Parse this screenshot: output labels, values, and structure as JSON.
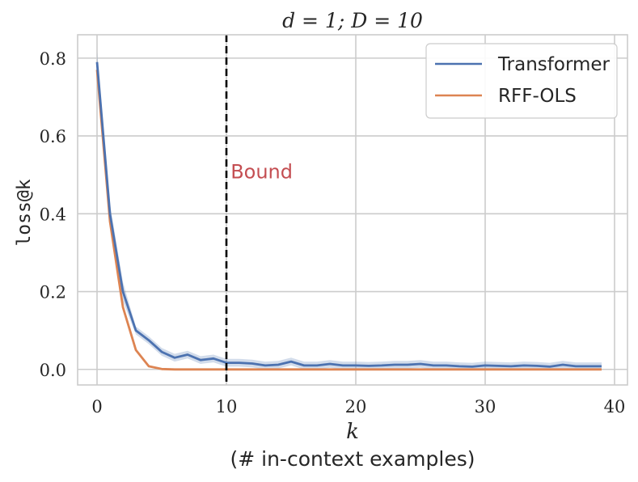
{
  "chart_data": {
    "type": "line",
    "title": "d = 1; D = 10",
    "xlabel": "k",
    "xlabel_sub": "(# in-context examples)",
    "ylabel": "loss@k",
    "xlim": [
      -1.5,
      41
    ],
    "ylim": [
      -0.04,
      0.86
    ],
    "xticks": [
      0,
      10,
      20,
      30,
      40
    ],
    "yticks": [
      0.0,
      0.2,
      0.4,
      0.6,
      0.8
    ],
    "ytick_labels": [
      "0.0",
      "0.2",
      "0.4",
      "0.6",
      "0.8"
    ],
    "grid": true,
    "legend_position": "top-right",
    "x": [
      0,
      1,
      2,
      3,
      4,
      5,
      6,
      7,
      8,
      9,
      10,
      11,
      12,
      13,
      14,
      15,
      16,
      17,
      18,
      19,
      20,
      21,
      22,
      23,
      24,
      25,
      26,
      27,
      28,
      29,
      30,
      31,
      32,
      33,
      34,
      35,
      36,
      37,
      38,
      39
    ],
    "series": [
      {
        "name": "Transformer",
        "color": "#4c72b0",
        "values": [
          0.79,
          0.4,
          0.2,
          0.1,
          0.075,
          0.045,
          0.03,
          0.038,
          0.024,
          0.028,
          0.017,
          0.017,
          0.015,
          0.01,
          0.012,
          0.02,
          0.01,
          0.01,
          0.014,
          0.01,
          0.01,
          0.009,
          0.01,
          0.012,
          0.012,
          0.014,
          0.01,
          0.01,
          0.008,
          0.007,
          0.01,
          0.009,
          0.008,
          0.01,
          0.009,
          0.007,
          0.012,
          0.008,
          0.008,
          0.008
        ],
        "band": 0.01
      },
      {
        "name": "RFF-OLS",
        "color": "#dd8452",
        "values": [
          0.77,
          0.38,
          0.16,
          0.05,
          0.008,
          0.001,
          0.0,
          0.0,
          0.0,
          0.0,
          0.0,
          0.0,
          0.0,
          0.0,
          0.0,
          0.0,
          0.0,
          0.0,
          0.0,
          0.0,
          0.0,
          0.0,
          0.0,
          0.0,
          0.0,
          0.0,
          0.0,
          0.0,
          0.0,
          0.0,
          0.0,
          0.0,
          0.0,
          0.0,
          0.0,
          0.0,
          0.0,
          0.0,
          0.0,
          0.0
        ]
      }
    ],
    "vline": {
      "x": 10,
      "color": "#000000",
      "style": "dashed"
    },
    "annotation": {
      "text": "Bound",
      "x": 10.2,
      "y": 0.51,
      "color": "#c44e52"
    }
  }
}
